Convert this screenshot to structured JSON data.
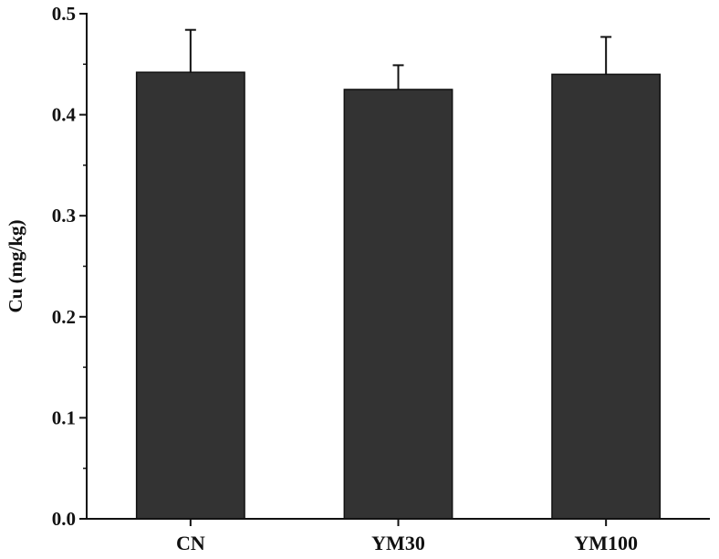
{
  "chart_data": {
    "type": "bar",
    "title": "",
    "xlabel": "",
    "ylabel": "Cu (mg/kg)",
    "categories": [
      "CN",
      "YM30",
      "YM100"
    ],
    "values": [
      0.442,
      0.425,
      0.44
    ],
    "errors": [
      0.042,
      0.024,
      0.037
    ],
    "ylim": [
      0,
      0.5
    ],
    "yticks": [
      "0.0",
      "0.1",
      "0.2",
      "0.3",
      "0.4",
      "0.5"
    ],
    "grid": false,
    "legend": "none",
    "bar_color": "#333333"
  }
}
